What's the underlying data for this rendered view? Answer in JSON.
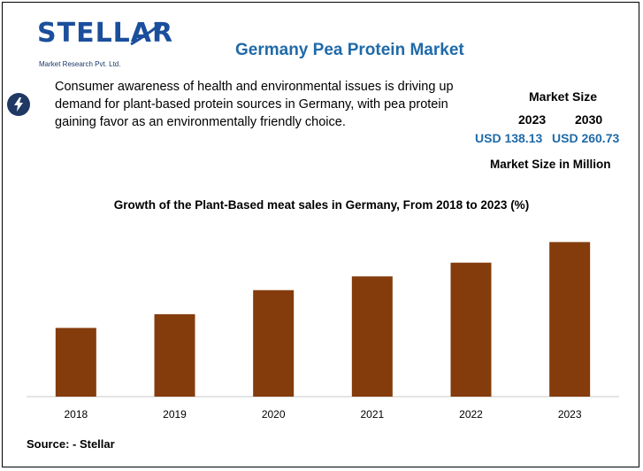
{
  "logo": {
    "wordmark": "STELLAR",
    "subtitle": "Market Research Pvt. Ltd."
  },
  "title": "Germany Pea Protein Market",
  "insight": {
    "icon": "lightning-icon",
    "text": "Consumer awareness of health and environmental issues is driving up demand for plant-based protein sources in Germany, with pea protein gaining favor as an environmentally friendly choice."
  },
  "market_size": {
    "label": "Market Size",
    "year_start": "2023",
    "year_end": "2030",
    "value_start": "USD 138.13",
    "value_end": "USD 260.73",
    "unit_label": "Market Size in Million"
  },
  "source": "Source: - Stellar",
  "colors": {
    "bar": "#843c0c",
    "title": "#1f6aa8",
    "logo": "#1b4f9c",
    "icon_bg": "#1f3864"
  },
  "chart_data": {
    "type": "bar",
    "title": "Growth of the Plant-Based meat sales in Germany, From 2018 to 2023 (%)",
    "categories": [
      "2018",
      "2019",
      "2020",
      "2021",
      "2022",
      "2023"
    ],
    "values": [
      40,
      48,
      62,
      70,
      78,
      90
    ],
    "xlabel": "",
    "ylabel": "",
    "ylim": [
      0,
      100
    ],
    "grid": false
  }
}
